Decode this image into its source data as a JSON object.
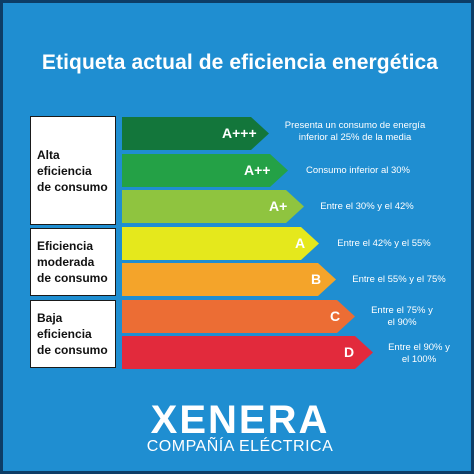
{
  "title": "Etiqueta actual de eficiencia energética",
  "colors": {
    "background": "#1f8ed1",
    "border": "#0d3d66",
    "bar_a3": "#13763b",
    "bar_a2": "#24a146",
    "bar_a1": "#8fc43f",
    "bar_a": "#e5e81c",
    "bar_b": "#f4a42a",
    "bar_c": "#ec6d34",
    "bar_d": "#e22a3c"
  },
  "groups": [
    {
      "label": "Alta\neficiencia\nde consumo"
    },
    {
      "label": "Eficiencia\nmoderada\nde consumo"
    },
    {
      "label": "Baja\neficiencia\nde consumo"
    }
  ],
  "bars": [
    {
      "grade": "A+++",
      "description": "Presenta un consumo de energía\ninferior al 25% de la media"
    },
    {
      "grade": "A++",
      "description": "Consumo inferior al 30%"
    },
    {
      "grade": "A+",
      "description": "Entre el 30% y el 42%"
    },
    {
      "grade": "A",
      "description": "Entre el 42% y el 55%"
    },
    {
      "grade": "B",
      "description": "Entre el 55% y el 75%"
    },
    {
      "grade": "C",
      "description": "Entre el 75% y\nel 90%"
    },
    {
      "grade": "D",
      "description": "Entre el 90% y\nel 100%"
    }
  ],
  "brand": {
    "name": "XENERA",
    "tagline": "COMPAÑÍA ELÉCTRICA"
  }
}
